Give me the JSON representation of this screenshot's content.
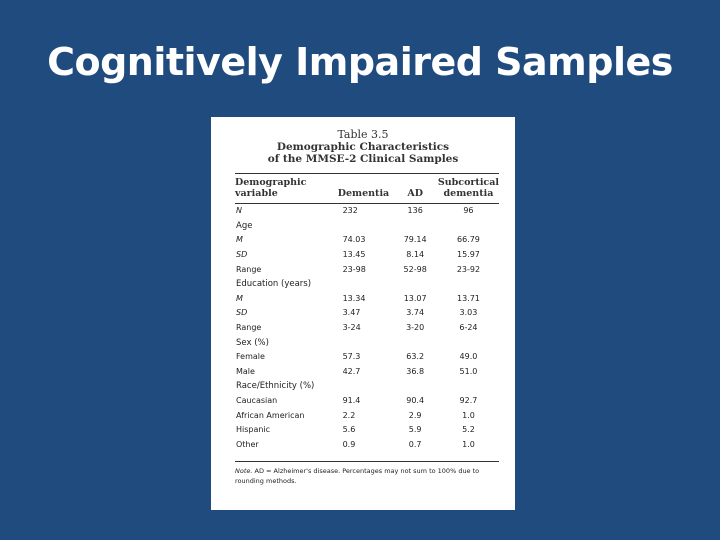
{
  "slide_title": "Cognitively Impaired Samples",
  "table": {
    "number": "Table 3.5",
    "title_line1": "Demographic Characteristics",
    "title_line2": "of the MMSE-2 Clinical Samples",
    "headers": {
      "col0": [
        "Demographic",
        "variable"
      ],
      "col1": "Dementia",
      "col2": "AD",
      "col3": [
        "Subcortical",
        "dementia"
      ]
    },
    "rows": [
      {
        "label": "N",
        "v1": "232",
        "v2": "136",
        "v3": "96"
      },
      {
        "label": "Age"
      },
      {
        "label": "M",
        "v1": "74.03",
        "v2": "79.14",
        "v3": "66.79"
      },
      {
        "label": "SD",
        "v1": "13.45",
        "v2": "8.14",
        "v3": "15.97"
      },
      {
        "label": "Range",
        "v1": "23-98",
        "v2": "52-98",
        "v3": "23-92"
      },
      {
        "label": "Education (years)"
      },
      {
        "label": "M",
        "v1": "13.34",
        "v2": "13.07",
        "v3": "13.71"
      },
      {
        "label": "SD",
        "v1": "3.47",
        "v2": "3.74",
        "v3": "3.03"
      },
      {
        "label": "Range",
        "v1": "3-24",
        "v2": "3-20",
        "v3": "6-24"
      },
      {
        "label": "Sex (%)"
      },
      {
        "label": "Female",
        "v1": "57.3",
        "v2": "63.2",
        "v3": "49.0"
      },
      {
        "label": "Male",
        "v1": "42.7",
        "v2": "36.8",
        "v3": "51.0"
      },
      {
        "label": "Race/Ethnicity (%)"
      },
      {
        "label": "Caucasian",
        "v1": "91.4",
        "v2": "90.4",
        "v3": "92.7"
      },
      {
        "label": "African American",
        "v1": "2.2",
        "v2": "2.9",
        "v3": "1.0"
      },
      {
        "label": "Hispanic",
        "v1": "5.6",
        "v2": "5.9",
        "v3": "5.2"
      },
      {
        "label": "Other",
        "v1": "0.9",
        "v2": "0.7",
        "v3": "1.0"
      }
    ],
    "note_label": "Note.",
    "note_text": "AD = Alzheimer's disease. Percentages may not sum to 100% due to rounding methods."
  }
}
